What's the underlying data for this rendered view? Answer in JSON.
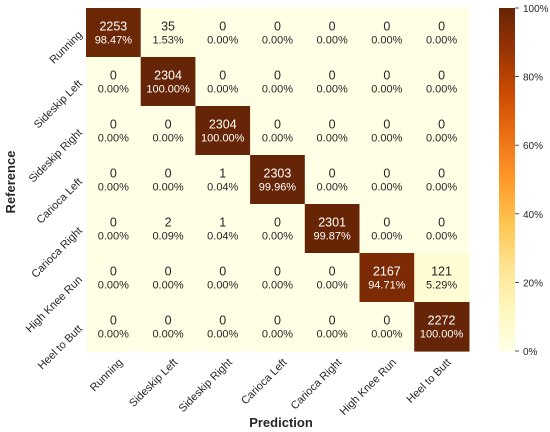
{
  "chart_data": {
    "type": "heatmap",
    "xlabel": "Prediction",
    "ylabel": "Reference",
    "x_categories": [
      "Running",
      "Sideskip Left",
      "Sideskip Right",
      "Carioca Left",
      "Carioca Right",
      "High Knee Run",
      "Heel to Butt"
    ],
    "y_categories": [
      "Running",
      "Sideskip Left",
      "Sideskip Right",
      "Carioca Left",
      "Carioca Right",
      "High Knee Run",
      "Heel to Butt"
    ],
    "counts": [
      [
        "2253",
        "35",
        "0",
        "0",
        "0",
        "0",
        "0"
      ],
      [
        "0",
        "2304",
        "0",
        "0",
        "0",
        "0",
        "0"
      ],
      [
        "0",
        "0",
        "2304",
        "0",
        "0",
        "0",
        "0"
      ],
      [
        "0",
        "0",
        "1",
        "2303",
        "0",
        "0",
        "0"
      ],
      [
        "0",
        "2",
        "1",
        "0",
        "2301",
        "0",
        "0"
      ],
      [
        "0",
        "0",
        "0",
        "0",
        "0",
        "2167",
        "121"
      ],
      [
        "0",
        "0",
        "0",
        "0",
        "0",
        "0",
        "2272"
      ]
    ],
    "percentages": [
      [
        "98.47%",
        "1.53%",
        "0.00%",
        "0.00%",
        "0.00%",
        "0.00%",
        "0.00%"
      ],
      [
        "0.00%",
        "100.00%",
        "0.00%",
        "0.00%",
        "0.00%",
        "0.00%",
        "0.00%"
      ],
      [
        "0.00%",
        "0.00%",
        "100.00%",
        "0.00%",
        "0.00%",
        "0.00%",
        "0.00%"
      ],
      [
        "0.00%",
        "0.00%",
        "0.04%",
        "99.96%",
        "0.00%",
        "0.00%",
        "0.00%"
      ],
      [
        "0.00%",
        "0.09%",
        "0.04%",
        "0.00%",
        "99.87%",
        "0.00%",
        "0.00%"
      ],
      [
        "0.00%",
        "0.00%",
        "0.00%",
        "0.00%",
        "0.00%",
        "94.71%",
        "5.29%"
      ],
      [
        "0.00%",
        "0.00%",
        "0.00%",
        "0.00%",
        "0.00%",
        "0.00%",
        "100.00%"
      ]
    ],
    "colorbar": {
      "range": [
        0,
        100
      ],
      "ticks": [
        "0%",
        "20%",
        "40%",
        "60%",
        "80%",
        "100%"
      ],
      "colormap": [
        "#ffffe5",
        "#fff7bc",
        "#fee391",
        "#fec44f",
        "#fe9929",
        "#ec7014",
        "#cc4c02",
        "#993404",
        "#662506"
      ]
    },
    "grid": false,
    "colors": {
      "light_text": "#ffffff",
      "dark_text": "#262626"
    }
  }
}
